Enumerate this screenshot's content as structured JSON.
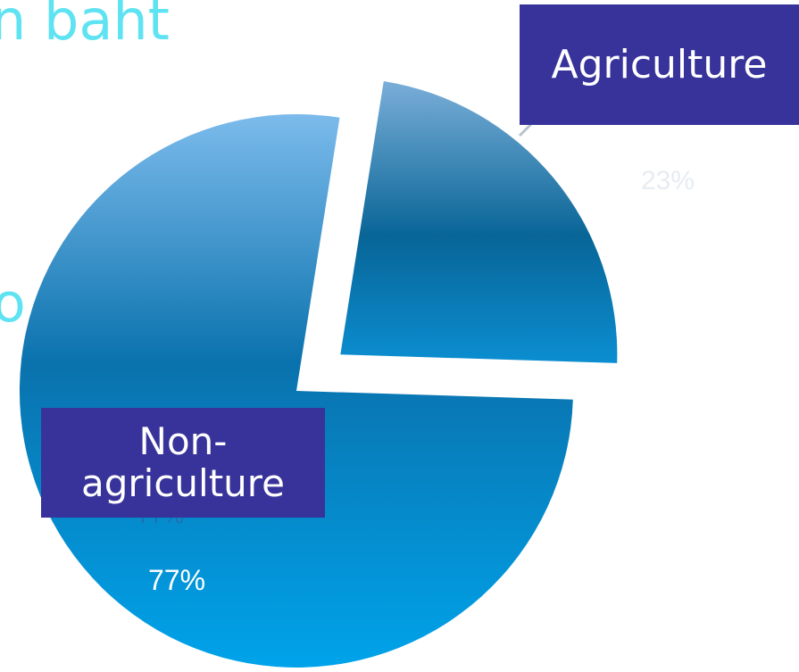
{
  "header": {
    "title_fragment": "n baht",
    "side_fragment": "o"
  },
  "chart_data": {
    "type": "pie",
    "title": "",
    "categories": [
      "Agriculture",
      "Non-agriculture"
    ],
    "values": [
      23,
      77
    ],
    "data_labels": [
      "23%",
      "77%"
    ],
    "exploded": "Agriculture",
    "legend": "none",
    "colors": {
      "pie_light": "#7cbbec",
      "pie_mid": "#0a72ad",
      "pie_bottom": "#00a3ea",
      "agri_top": "#7aaed8",
      "agri_mid": "#086597",
      "agri_bottom": "#0b8ed1",
      "label_box": "#37339a",
      "fragment_text": "#5fe3f2"
    }
  },
  "labels": {
    "agriculture": "Agriculture",
    "non_agriculture_line1": "Non-",
    "non_agriculture_line2": "agriculture"
  }
}
